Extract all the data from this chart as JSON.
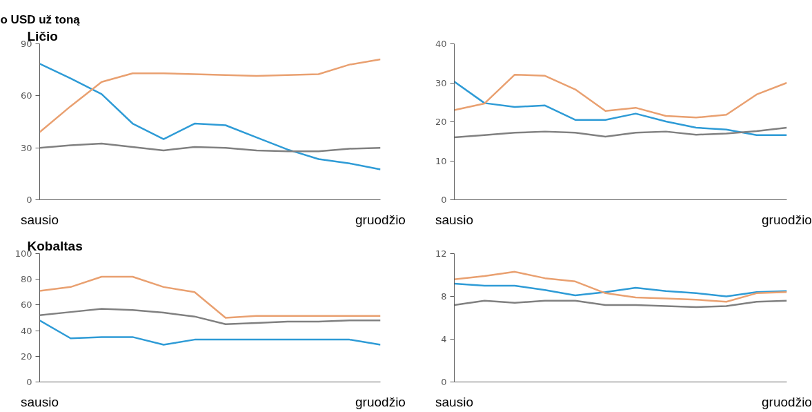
{
  "chart_data": [
    {
      "type": "line",
      "title": "Ličio",
      "annotations": [
        "o USD už toną"
      ],
      "categories": [
        "sausio",
        null,
        null,
        null,
        null,
        null,
        null,
        null,
        null,
        null,
        null,
        "gruodžio"
      ],
      "ylim": [
        0,
        90
      ],
      "yticks": [
        0,
        30,
        60,
        90
      ],
      "grid": false,
      "series": [
        {
          "color": "#2e9bd6",
          "values": [
            78.5,
            70,
            61,
            44,
            35,
            44,
            43,
            36,
            29,
            23.5,
            21,
            17.5
          ]
        },
        {
          "color": "#e9a070",
          "values": [
            39,
            54,
            68,
            73,
            73,
            72.5,
            72,
            71.5,
            72,
            72.5,
            78,
            81
          ]
        },
        {
          "color": "#808080",
          "values": [
            30,
            31.5,
            32.5,
            30.5,
            28.5,
            30.5,
            30,
            28.5,
            28,
            28,
            29.5,
            30
          ]
        }
      ]
    },
    {
      "type": "line",
      "categories": [
        "sausio",
        null,
        null,
        null,
        null,
        null,
        null,
        null,
        null,
        null,
        null,
        "gruodžio"
      ],
      "ylim": [
        0,
        40
      ],
      "yticks": [
        0,
        10,
        20,
        30,
        40
      ],
      "grid": false,
      "series": [
        {
          "color": "#2e9bd6",
          "values": [
            30.3,
            24.8,
            23.8,
            24.2,
            20.5,
            20.5,
            22.1,
            20.1,
            18.5,
            18,
            16.6,
            16.6
          ]
        },
        {
          "color": "#e9a070",
          "values": [
            23,
            24.7,
            32.1,
            31.8,
            28.3,
            22.8,
            23.6,
            21.5,
            21.1,
            21.8,
            27,
            30
          ]
        },
        {
          "color": "#808080",
          "values": [
            16,
            16.6,
            17.2,
            17.5,
            17.2,
            16.2,
            17.2,
            17.5,
            16.7,
            17,
            17.6,
            18.5
          ]
        }
      ]
    },
    {
      "type": "line",
      "title": "Kobaltas",
      "categories": [
        "sausio",
        null,
        null,
        null,
        null,
        null,
        null,
        null,
        null,
        null,
        null,
        "gruodžio"
      ],
      "ylim": [
        0,
        100
      ],
      "yticks": [
        0,
        20,
        40,
        60,
        80,
        100
      ],
      "grid": false,
      "series": [
        {
          "color": "#2e9bd6",
          "values": [
            48,
            34,
            35,
            35,
            29,
            33,
            33,
            33,
            33,
            33,
            33,
            29
          ]
        },
        {
          "color": "#e9a070",
          "values": [
            71,
            74,
            82,
            82,
            74,
            70,
            50,
            51.5,
            51.5,
            51.5,
            51.5,
            51.5
          ]
        },
        {
          "color": "#808080",
          "values": [
            52,
            54.5,
            57,
            56,
            54,
            51,
            45,
            46,
            47,
            47,
            48,
            48
          ]
        }
      ]
    },
    {
      "type": "line",
      "categories": [
        "sausio",
        null,
        null,
        null,
        null,
        null,
        null,
        null,
        null,
        null,
        null,
        "gruodžio"
      ],
      "ylim": [
        0,
        12
      ],
      "yticks": [
        0,
        4,
        8,
        12
      ],
      "grid": false,
      "series": [
        {
          "color": "#2e9bd6",
          "values": [
            9.2,
            9.0,
            9.0,
            8.6,
            8.1,
            8.4,
            8.8,
            8.5,
            8.3,
            8.0,
            8.4,
            8.5
          ]
        },
        {
          "color": "#e9a070",
          "values": [
            9.6,
            9.9,
            10.3,
            9.7,
            9.4,
            8.3,
            7.9,
            7.8,
            7.7,
            7.5,
            8.3,
            8.4
          ]
        },
        {
          "color": "#808080",
          "values": [
            7.2,
            7.6,
            7.4,
            7.6,
            7.6,
            7.2,
            7.2,
            7.1,
            7.0,
            7.1,
            7.5,
            7.6
          ]
        }
      ]
    }
  ]
}
